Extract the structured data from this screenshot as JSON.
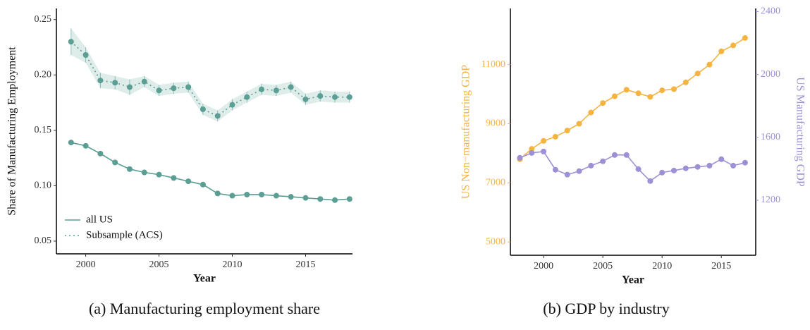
{
  "chart_data": [
    {
      "type": "line",
      "caption": "(a) Manufacturing employment share",
      "xlabel": "Year",
      "ylabel": "Share of Manufacturing Employment",
      "x": [
        1999,
        2000,
        2001,
        2002,
        2003,
        2004,
        2005,
        2006,
        2007,
        2008,
        2009,
        2010,
        2011,
        2012,
        2013,
        2014,
        2015,
        2016,
        2017,
        2018
      ],
      "xlim": [
        1998,
        2018.2
      ],
      "xticks": [
        2000,
        2005,
        2010,
        2015
      ],
      "ylim": [
        0.0385,
        0.26
      ],
      "yticks": [
        0.05,
        {
          "value": 0.1,
          "label": "0.10"
        },
        0.15,
        {
          "value": 0.2,
          "label": "0.20"
        },
        0.25
      ],
      "legend": "lower left",
      "series": [
        {
          "name": "all US",
          "color": "#5a9e94",
          "linestyle": "solid",
          "values": [
            0.139,
            0.136,
            0.129,
            0.121,
            0.115,
            0.112,
            0.11,
            0.107,
            0.104,
            0.101,
            0.093,
            0.091,
            0.092,
            0.092,
            0.091,
            0.09,
            0.089,
            0.088,
            0.087,
            0.088
          ]
        },
        {
          "name": "Subsample (ACS)",
          "color": "#5a9e94",
          "linestyle": "dotted",
          "values": [
            0.23,
            0.218,
            0.195,
            0.193,
            0.189,
            0.194,
            0.186,
            0.188,
            0.189,
            0.169,
            0.163,
            0.173,
            0.18,
            0.187,
            0.186,
            0.189,
            0.178,
            0.181,
            0.18,
            0.18
          ],
          "errors": [
            0.012,
            0.007,
            0.007,
            0.006,
            0.007,
            0.005,
            0.005,
            0.005,
            0.005,
            0.005,
            0.005,
            0.005,
            0.005,
            0.005,
            0.005,
            0.005,
            0.005,
            0.005,
            0.005,
            0.005
          ]
        }
      ]
    },
    {
      "type": "line",
      "caption": "(b) GDP by industry",
      "xlabel": "Year",
      "ylabel": "US Non−manufacturing GDP",
      "y2label": "US Manufacturing GDP",
      "x": [
        1998,
        1999,
        2000,
        2001,
        2002,
        2003,
        2004,
        2005,
        2006,
        2007,
        2008,
        2009,
        2010,
        2011,
        2012,
        2013,
        2014,
        2015,
        2016,
        2017
      ],
      "xlim": [
        1997.2,
        2017.9
      ],
      "xticks": [
        2000,
        2005,
        2010,
        2015
      ],
      "ylim": [
        4550,
        12900
      ],
      "yticks": [
        5000,
        7000,
        9000,
        11000
      ],
      "y2lim": [
        850,
        2420
      ],
      "y2ticks": [
        1200,
        1600,
        2000,
        2400
      ],
      "series": [
        {
          "name": "US Non−manufacturing GDP",
          "color": "#f5b340",
          "axis": "y",
          "values": [
            7800,
            8150,
            8420,
            8560,
            8770,
            9000,
            9380,
            9700,
            9930,
            10150,
            10030,
            9910,
            10130,
            10170,
            10400,
            10700,
            11000,
            11450,
            11650,
            11900
          ]
        },
        {
          "name": "US Manufacturing GDP",
          "color": "#9e90d4",
          "axis": "y2",
          "values": [
            1470,
            1501,
            1510,
            1394,
            1363,
            1385,
            1420,
            1448,
            1488,
            1488,
            1398,
            1322,
            1376,
            1389,
            1403,
            1412,
            1420,
            1461,
            1420,
            1439
          ]
        }
      ]
    }
  ]
}
